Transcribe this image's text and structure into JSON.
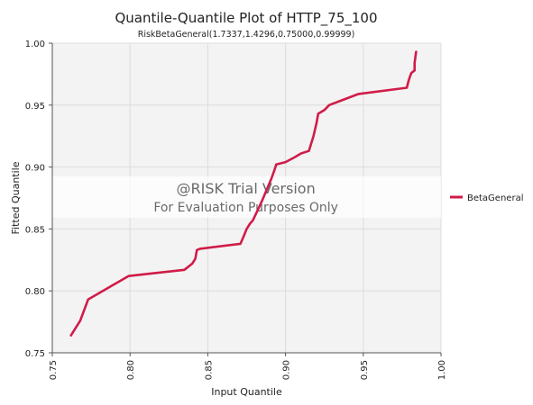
{
  "colors": {
    "series": "#d01c48",
    "plot_bg": "#f3f3f3",
    "grid": "#dcdcdc",
    "axis": "#555555",
    "watermark_band": "#ffffff"
  },
  "watermark": {
    "line1": "@RISK Trial Version",
    "line2": "For Evaluation Purposes Only"
  },
  "chart_data": {
    "type": "line",
    "title": "Quantile-Quantile Plot of HTTP_75_100",
    "subtitle": "RiskBetaGeneral(1.7337,1.4296,0.75000,0.99999)",
    "xlabel": "Input Quantile",
    "ylabel": "Fitted Quantile",
    "xlim": [
      0.75,
      1.0
    ],
    "ylim": [
      0.75,
      1.0
    ],
    "x_ticks": [
      "0.75",
      "0.80",
      "0.85",
      "0.90",
      "0.95",
      "1.00"
    ],
    "y_ticks": [
      "0.75",
      "0.80",
      "0.85",
      "0.90",
      "0.95",
      "1.00"
    ],
    "grid": true,
    "legend_position": "right",
    "series": [
      {
        "name": "BetaGeneral",
        "x": [
          0.762,
          0.768,
          0.773,
          0.799,
          0.835,
          0.84,
          0.842,
          0.843,
          0.845,
          0.871,
          0.873,
          0.875,
          0.877,
          0.879,
          0.882,
          0.885,
          0.888,
          0.891,
          0.893,
          0.894,
          0.9,
          0.906,
          0.91,
          0.915,
          0.917,
          0.918,
          0.92,
          0.921,
          0.925,
          0.928,
          0.947,
          0.978,
          0.979,
          0.98,
          0.981,
          0.983,
          0.983,
          0.984
        ],
        "y": [
          0.764,
          0.776,
          0.793,
          0.812,
          0.817,
          0.822,
          0.826,
          0.833,
          0.834,
          0.838,
          0.844,
          0.85,
          0.854,
          0.857,
          0.865,
          0.873,
          0.882,
          0.891,
          0.898,
          0.902,
          0.904,
          0.908,
          0.911,
          0.913,
          0.921,
          0.925,
          0.936,
          0.943,
          0.946,
          0.95,
          0.959,
          0.964,
          0.969,
          0.973,
          0.976,
          0.978,
          0.984,
          0.993
        ]
      }
    ]
  }
}
